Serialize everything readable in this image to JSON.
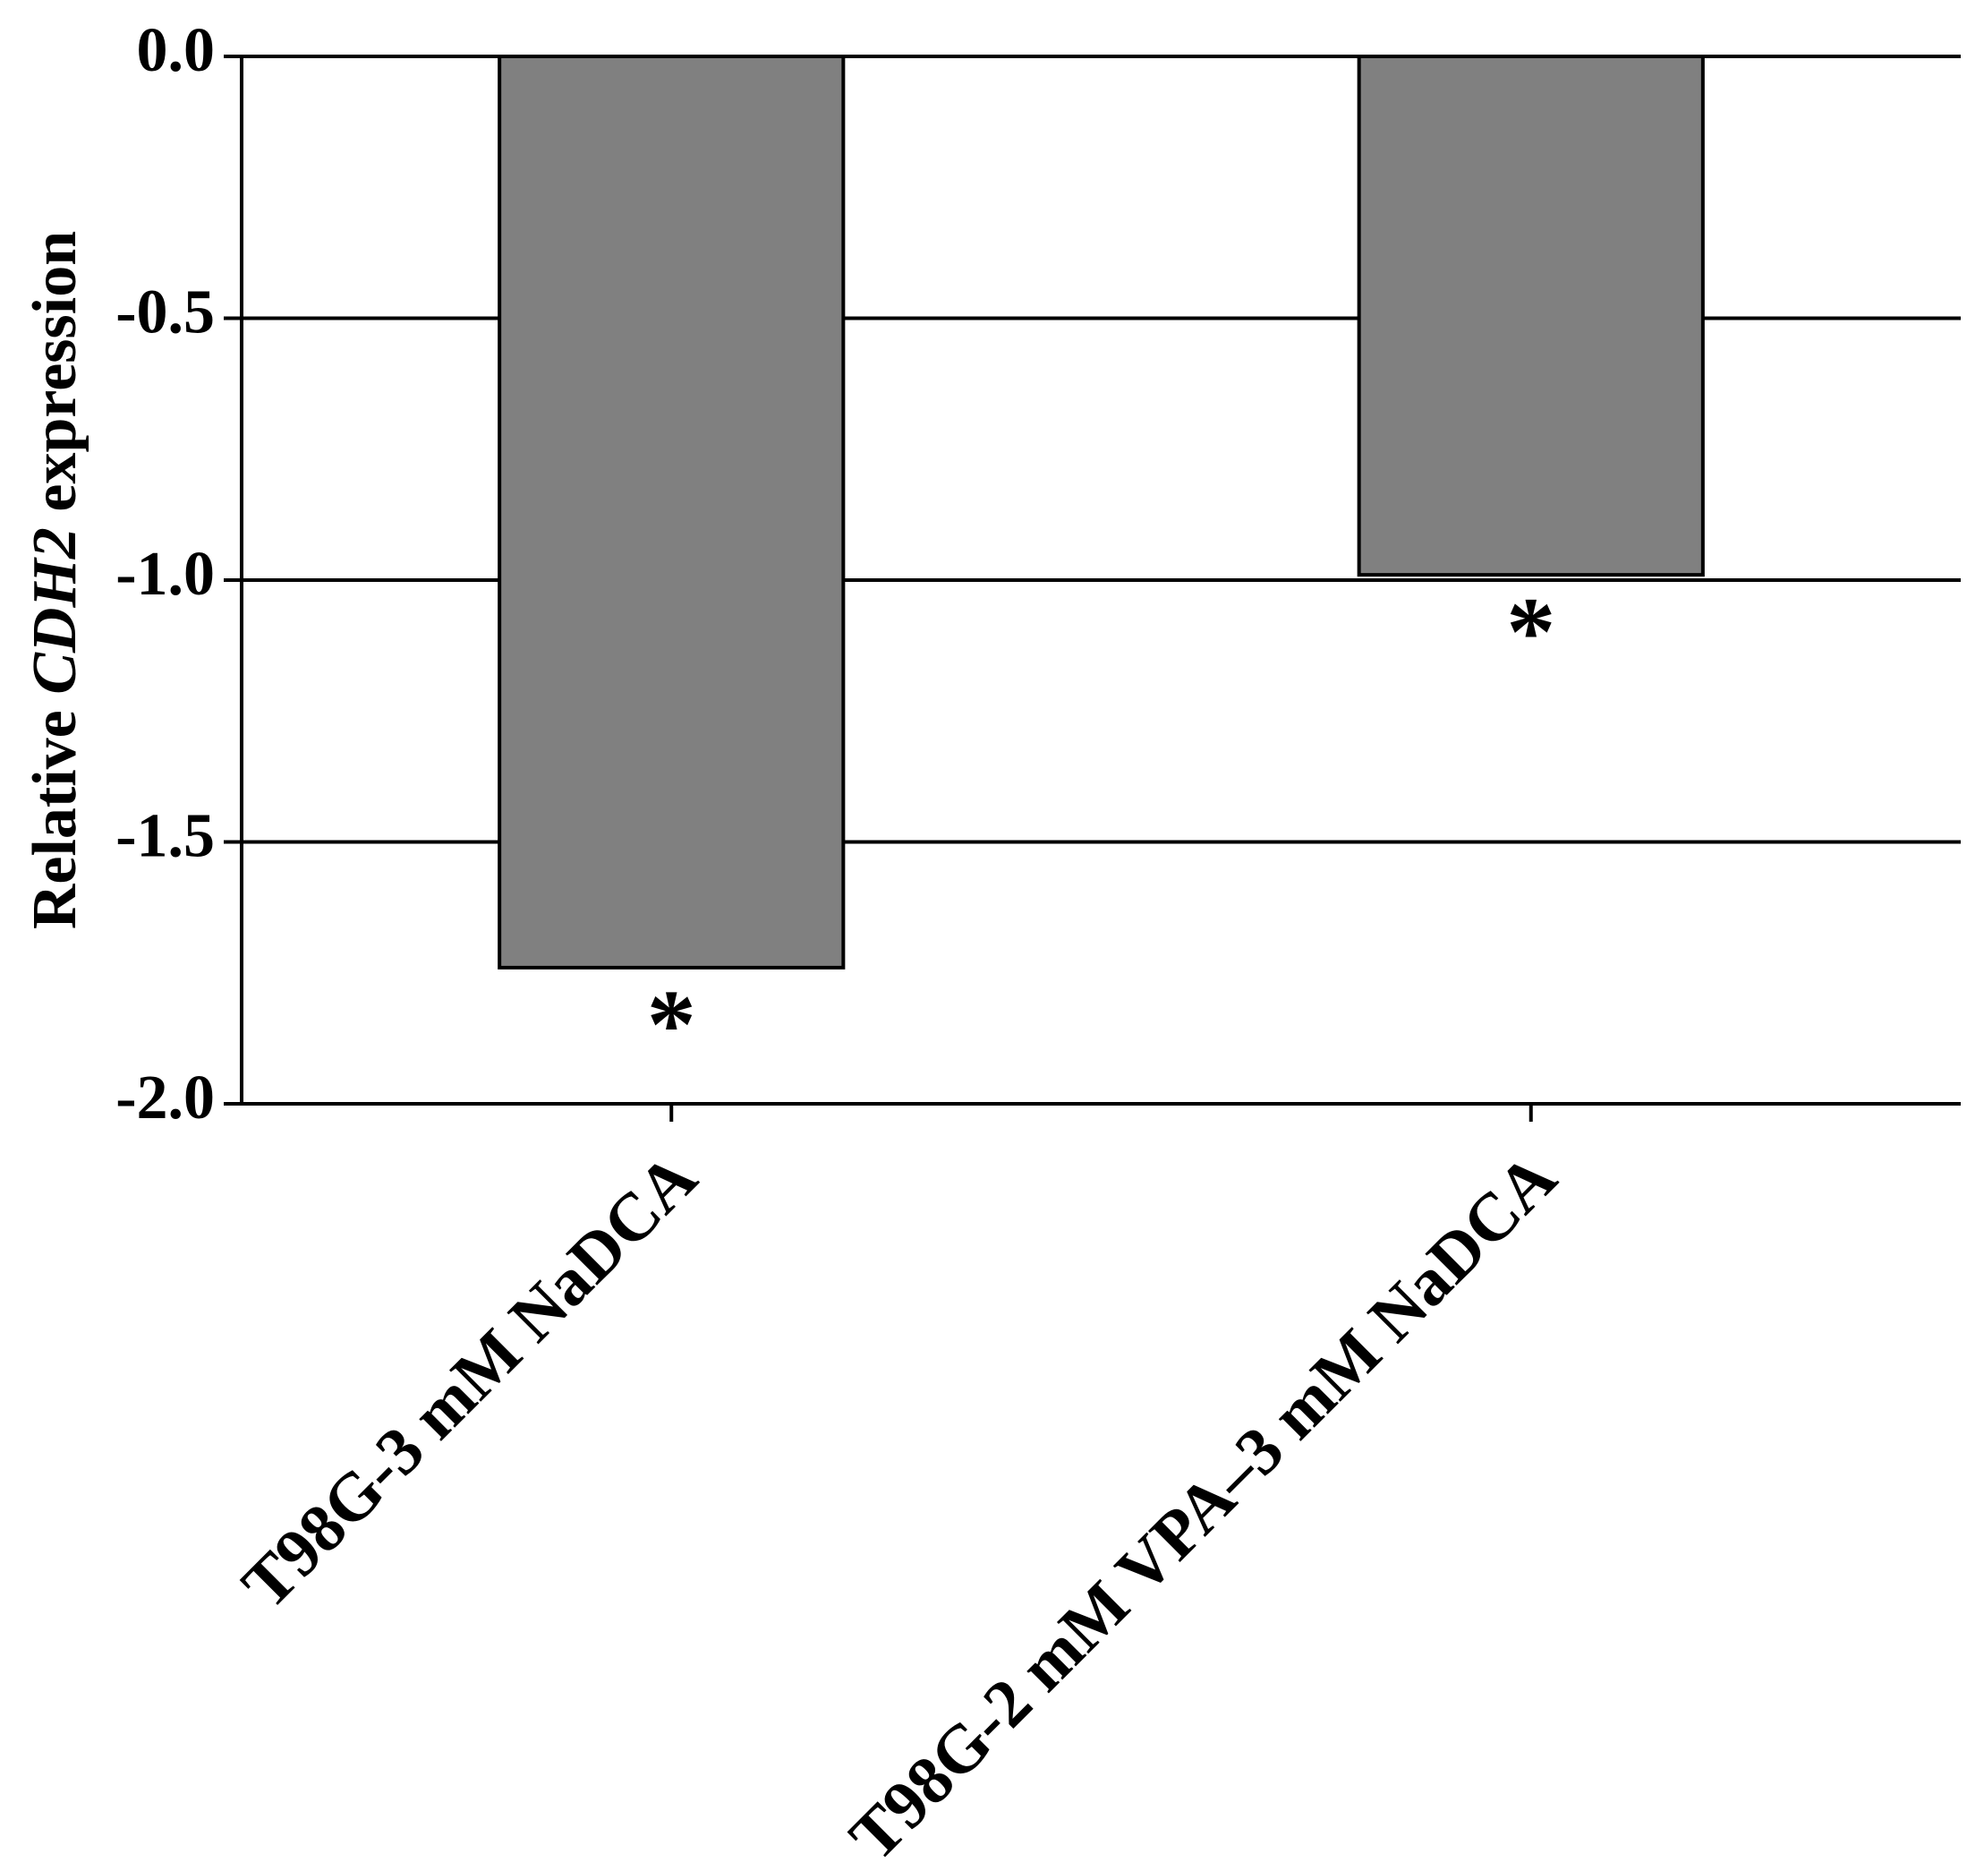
{
  "chart_data": {
    "type": "bar",
    "y_label": [
      "Relative ",
      "CDH2",
      " expression"
    ],
    "categories": [
      "T98G-3 mM NaDCA",
      "T98G-2 mM VPA–3 mM NaDCA"
    ],
    "values": [
      -1.74,
      -0.99
    ],
    "annotations": [
      "*",
      "*"
    ],
    "color": "#808080",
    "ylim": [
      -2,
      0
    ],
    "yticks": [
      {
        "value": 0,
        "label": "0.0"
      },
      {
        "value": -0.5,
        "label": "-0.5"
      },
      {
        "value": -1,
        "label": "-1.0"
      },
      {
        "value": -1.5,
        "label": "-1.5"
      },
      {
        "value": -2,
        "label": "-2.0"
      }
    ],
    "grid": true
  }
}
